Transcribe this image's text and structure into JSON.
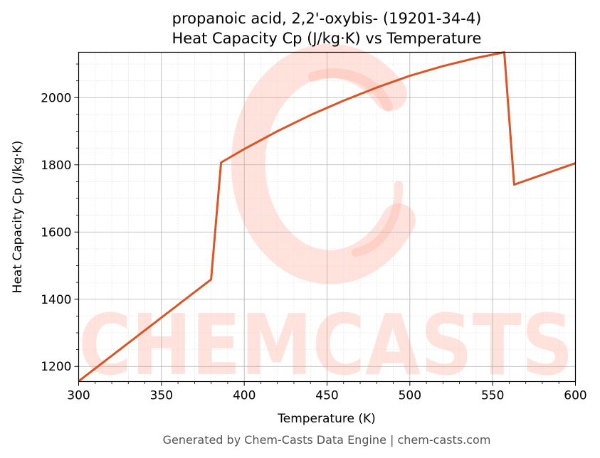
{
  "chart_data": {
    "type": "line",
    "title": "propanoic acid, 2,2'-oxybis- (19201-34-4)",
    "subtitle": "Heat Capacity Cp (J/kg·K) vs Temperature",
    "xlabel": "Temperature (K)",
    "ylabel": "Heat Capacity Cp (J/kg·K)",
    "xlim": [
      300,
      600
    ],
    "ylim": [
      1155,
      2135
    ],
    "xticks": [
      300,
      350,
      400,
      450,
      500,
      550,
      600
    ],
    "yticks": [
      1200,
      1400,
      1600,
      1800,
      2000
    ],
    "grid": true,
    "line_color": "#d95525",
    "series": [
      {
        "x": [
          300,
          380,
          386,
          400,
          420,
          440,
          460,
          480,
          500,
          520,
          540,
          557,
          563,
          600
        ],
        "y": [
          1156,
          1459,
          1807,
          1847,
          1900,
          1948,
          1991,
          2030,
          2065,
          2094,
          2118,
          2135,
          1741,
          1805
        ]
      }
    ]
  },
  "watermark": "CHEMCASTS",
  "footer": "Generated by Chem-Casts Data Engine | chem-casts.com"
}
